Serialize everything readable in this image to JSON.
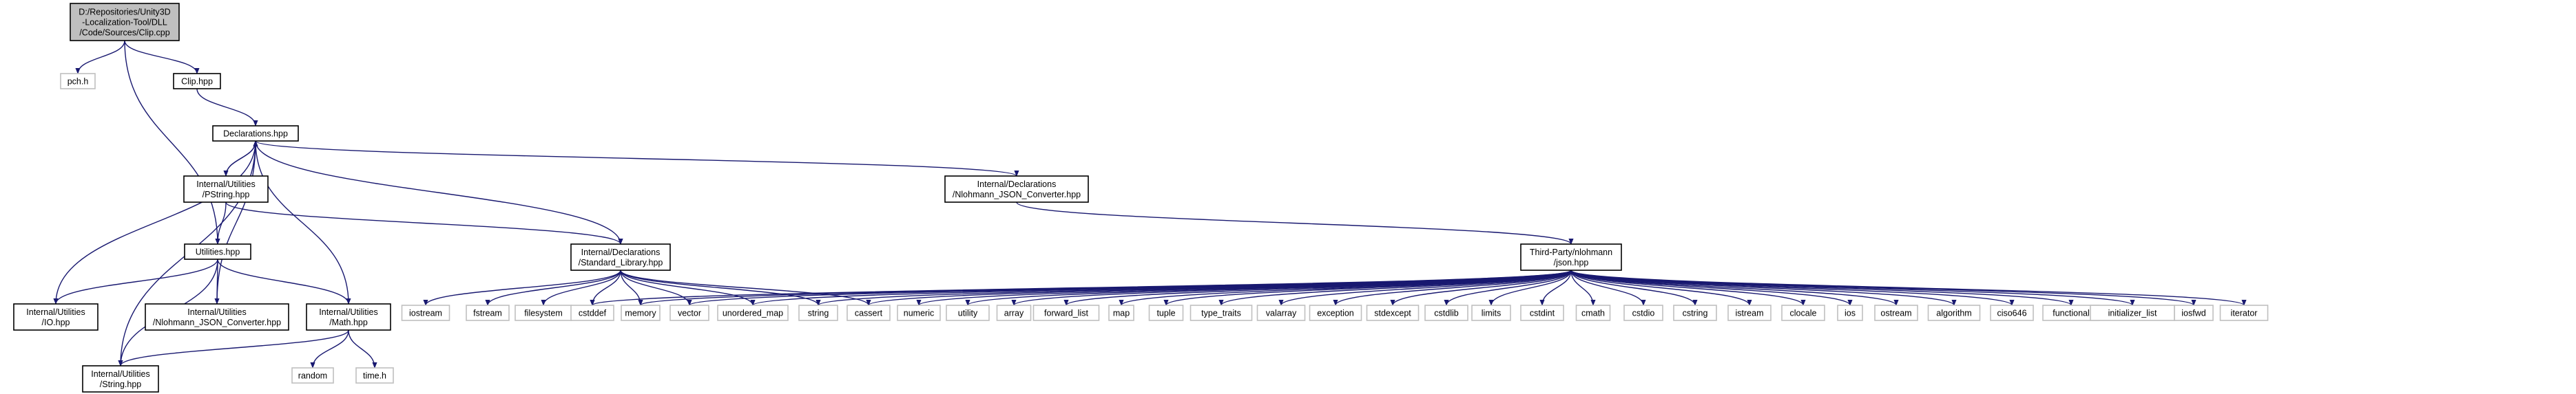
{
  "graph": {
    "edge_color": "#191970",
    "root_fill": "#bfbfbf",
    "node_border": "#000000",
    "system_header_border": "#bfbfbf",
    "nodes": [
      {
        "id": "clip_cpp",
        "lines": [
          "D:/Repositories/Unity3D",
          "-Localization-Tool/DLL",
          "/Code/Sources/Clip.cpp"
        ],
        "kind": "root"
      },
      {
        "id": "pch_h",
        "lines": [
          "pch.h"
        ],
        "kind": "system"
      },
      {
        "id": "clip_hpp",
        "lines": [
          "Clip.hpp"
        ],
        "kind": "file"
      },
      {
        "id": "declarations_hpp",
        "lines": [
          "Declarations.hpp"
        ],
        "kind": "file"
      },
      {
        "id": "pstring_hpp",
        "lines": [
          "Internal/Utilities",
          "/PString.hpp"
        ],
        "kind": "file"
      },
      {
        "id": "nlohmann_converter_decl",
        "lines": [
          "Internal/Declarations",
          "/Nlohmann_JSON_Converter.hpp"
        ],
        "kind": "file"
      },
      {
        "id": "utilities_hpp",
        "lines": [
          "Utilities.hpp"
        ],
        "kind": "file"
      },
      {
        "id": "standard_library_hpp",
        "lines": [
          "Internal/Declarations",
          "/Standard_Library.hpp"
        ],
        "kind": "file"
      },
      {
        "id": "json_hpp",
        "lines": [
          "Third-Party/nlohmann",
          "/json.hpp"
        ],
        "kind": "file"
      },
      {
        "id": "io_hpp",
        "lines": [
          "Internal/Utilities",
          "/IO.hpp"
        ],
        "kind": "file"
      },
      {
        "id": "nlohmann_converter_util",
        "lines": [
          "Internal/Utilities",
          "/Nlohmann_JSON_Converter.hpp"
        ],
        "kind": "file"
      },
      {
        "id": "math_hpp",
        "lines": [
          "Internal/Utilities",
          "/Math.hpp"
        ],
        "kind": "file"
      },
      {
        "id": "string_hpp",
        "lines": [
          "Internal/Utilities",
          "/String.hpp"
        ],
        "kind": "file"
      },
      {
        "id": "random",
        "lines": [
          "random"
        ],
        "kind": "system"
      },
      {
        "id": "time_h",
        "lines": [
          "time.h"
        ],
        "kind": "system"
      },
      {
        "id": "iostream",
        "lines": [
          "iostream"
        ],
        "kind": "system"
      },
      {
        "id": "fstream",
        "lines": [
          "fstream"
        ],
        "kind": "system"
      },
      {
        "id": "filesystem",
        "lines": [
          "filesystem"
        ],
        "kind": "system"
      },
      {
        "id": "cstddef",
        "lines": [
          "cstddef"
        ],
        "kind": "system"
      },
      {
        "id": "memory",
        "lines": [
          "memory"
        ],
        "kind": "system"
      },
      {
        "id": "vector",
        "lines": [
          "vector"
        ],
        "kind": "system"
      },
      {
        "id": "unordered_map",
        "lines": [
          "unordered_map"
        ],
        "kind": "system"
      },
      {
        "id": "string",
        "lines": [
          "string"
        ],
        "kind": "system"
      },
      {
        "id": "cassert",
        "lines": [
          "cassert"
        ],
        "kind": "system"
      },
      {
        "id": "numeric",
        "lines": [
          "numeric"
        ],
        "kind": "system"
      },
      {
        "id": "utility",
        "lines": [
          "utility"
        ],
        "kind": "system"
      },
      {
        "id": "array",
        "lines": [
          "array"
        ],
        "kind": "system"
      },
      {
        "id": "forward_list",
        "lines": [
          "forward_list"
        ],
        "kind": "system"
      },
      {
        "id": "map",
        "lines": [
          "map"
        ],
        "kind": "system"
      },
      {
        "id": "tuple",
        "lines": [
          "tuple"
        ],
        "kind": "system"
      },
      {
        "id": "type_traits",
        "lines": [
          "type_traits"
        ],
        "kind": "system"
      },
      {
        "id": "valarray",
        "lines": [
          "valarray"
        ],
        "kind": "system"
      },
      {
        "id": "exception",
        "lines": [
          "exception"
        ],
        "kind": "system"
      },
      {
        "id": "stdexcept",
        "lines": [
          "stdexcept"
        ],
        "kind": "system"
      },
      {
        "id": "cstdlib",
        "lines": [
          "cstdlib"
        ],
        "kind": "system"
      },
      {
        "id": "limits",
        "lines": [
          "limits"
        ],
        "kind": "system"
      },
      {
        "id": "cstdint",
        "lines": [
          "cstdint"
        ],
        "kind": "system"
      },
      {
        "id": "cmath",
        "lines": [
          "cmath"
        ],
        "kind": "system"
      },
      {
        "id": "cstdio",
        "lines": [
          "cstdio"
        ],
        "kind": "system"
      },
      {
        "id": "cstring",
        "lines": [
          "cstring"
        ],
        "kind": "system"
      },
      {
        "id": "istream",
        "lines": [
          "istream"
        ],
        "kind": "system"
      },
      {
        "id": "clocale",
        "lines": [
          "clocale"
        ],
        "kind": "system"
      },
      {
        "id": "ios",
        "lines": [
          "ios"
        ],
        "kind": "system"
      },
      {
        "id": "ostream",
        "lines": [
          "ostream"
        ],
        "kind": "system"
      },
      {
        "id": "algorithm",
        "lines": [
          "algorithm"
        ],
        "kind": "system"
      },
      {
        "id": "ciso646",
        "lines": [
          "ciso646"
        ],
        "kind": "system"
      },
      {
        "id": "functional",
        "lines": [
          "functional"
        ],
        "kind": "system"
      },
      {
        "id": "initializer_list",
        "lines": [
          "initializer_list"
        ],
        "kind": "system"
      },
      {
        "id": "iosfwd",
        "lines": [
          "iosfwd"
        ],
        "kind": "system"
      },
      {
        "id": "iterator",
        "lines": [
          "iterator"
        ],
        "kind": "system"
      }
    ],
    "edges": [
      [
        "clip_cpp",
        "pch_h"
      ],
      [
        "clip_cpp",
        "clip_hpp"
      ],
      [
        "clip_cpp",
        "utilities_hpp"
      ],
      [
        "clip_hpp",
        "declarations_hpp"
      ],
      [
        "declarations_hpp",
        "pstring_hpp"
      ],
      [
        "declarations_hpp",
        "nlohmann_converter_decl"
      ],
      [
        "declarations_hpp",
        "standard_library_hpp"
      ],
      [
        "pstring_hpp",
        "utilities_hpp"
      ],
      [
        "pstring_hpp",
        "standard_library_hpp"
      ],
      [
        "pstring_hpp",
        "declarations_hpp"
      ],
      [
        "nlohmann_converter_decl",
        "json_hpp"
      ],
      [
        "utilities_hpp",
        "io_hpp"
      ],
      [
        "utilities_hpp",
        "nlohmann_converter_util"
      ],
      [
        "utilities_hpp",
        "math_hpp"
      ],
      [
        "utilities_hpp",
        "string_hpp"
      ],
      [
        "io_hpp",
        "declarations_hpp"
      ],
      [
        "nlohmann_converter_util",
        "declarations_hpp"
      ],
      [
        "math_hpp",
        "declarations_hpp"
      ],
      [
        "math_hpp",
        "string_hpp"
      ],
      [
        "math_hpp",
        "random"
      ],
      [
        "math_hpp",
        "time_h"
      ],
      [
        "string_hpp",
        "declarations_hpp"
      ],
      [
        "standard_library_hpp",
        "iostream"
      ],
      [
        "standard_library_hpp",
        "fstream"
      ],
      [
        "standard_library_hpp",
        "filesystem"
      ],
      [
        "standard_library_hpp",
        "cstddef"
      ],
      [
        "standard_library_hpp",
        "memory"
      ],
      [
        "standard_library_hpp",
        "vector"
      ],
      [
        "standard_library_hpp",
        "unordered_map"
      ],
      [
        "standard_library_hpp",
        "string"
      ],
      [
        "standard_library_hpp",
        "cassert"
      ],
      [
        "json_hpp",
        "cstddef"
      ],
      [
        "json_hpp",
        "memory"
      ],
      [
        "json_hpp",
        "vector"
      ],
      [
        "json_hpp",
        "unordered_map"
      ],
      [
        "json_hpp",
        "string"
      ],
      [
        "json_hpp",
        "cassert"
      ],
      [
        "json_hpp",
        "numeric"
      ],
      [
        "json_hpp",
        "utility"
      ],
      [
        "json_hpp",
        "array"
      ],
      [
        "json_hpp",
        "forward_list"
      ],
      [
        "json_hpp",
        "map"
      ],
      [
        "json_hpp",
        "tuple"
      ],
      [
        "json_hpp",
        "type_traits"
      ],
      [
        "json_hpp",
        "valarray"
      ],
      [
        "json_hpp",
        "exception"
      ],
      [
        "json_hpp",
        "stdexcept"
      ],
      [
        "json_hpp",
        "cstdlib"
      ],
      [
        "json_hpp",
        "limits"
      ],
      [
        "json_hpp",
        "cstdint"
      ],
      [
        "json_hpp",
        "cmath"
      ],
      [
        "json_hpp",
        "cstdio"
      ],
      [
        "json_hpp",
        "cstring"
      ],
      [
        "json_hpp",
        "istream"
      ],
      [
        "json_hpp",
        "clocale"
      ],
      [
        "json_hpp",
        "ios"
      ],
      [
        "json_hpp",
        "ostream"
      ],
      [
        "json_hpp",
        "algorithm"
      ],
      [
        "json_hpp",
        "ciso646"
      ],
      [
        "json_hpp",
        "functional"
      ],
      [
        "json_hpp",
        "initializer_list"
      ],
      [
        "json_hpp",
        "iosfwd"
      ],
      [
        "json_hpp",
        "iterator"
      ]
    ]
  }
}
